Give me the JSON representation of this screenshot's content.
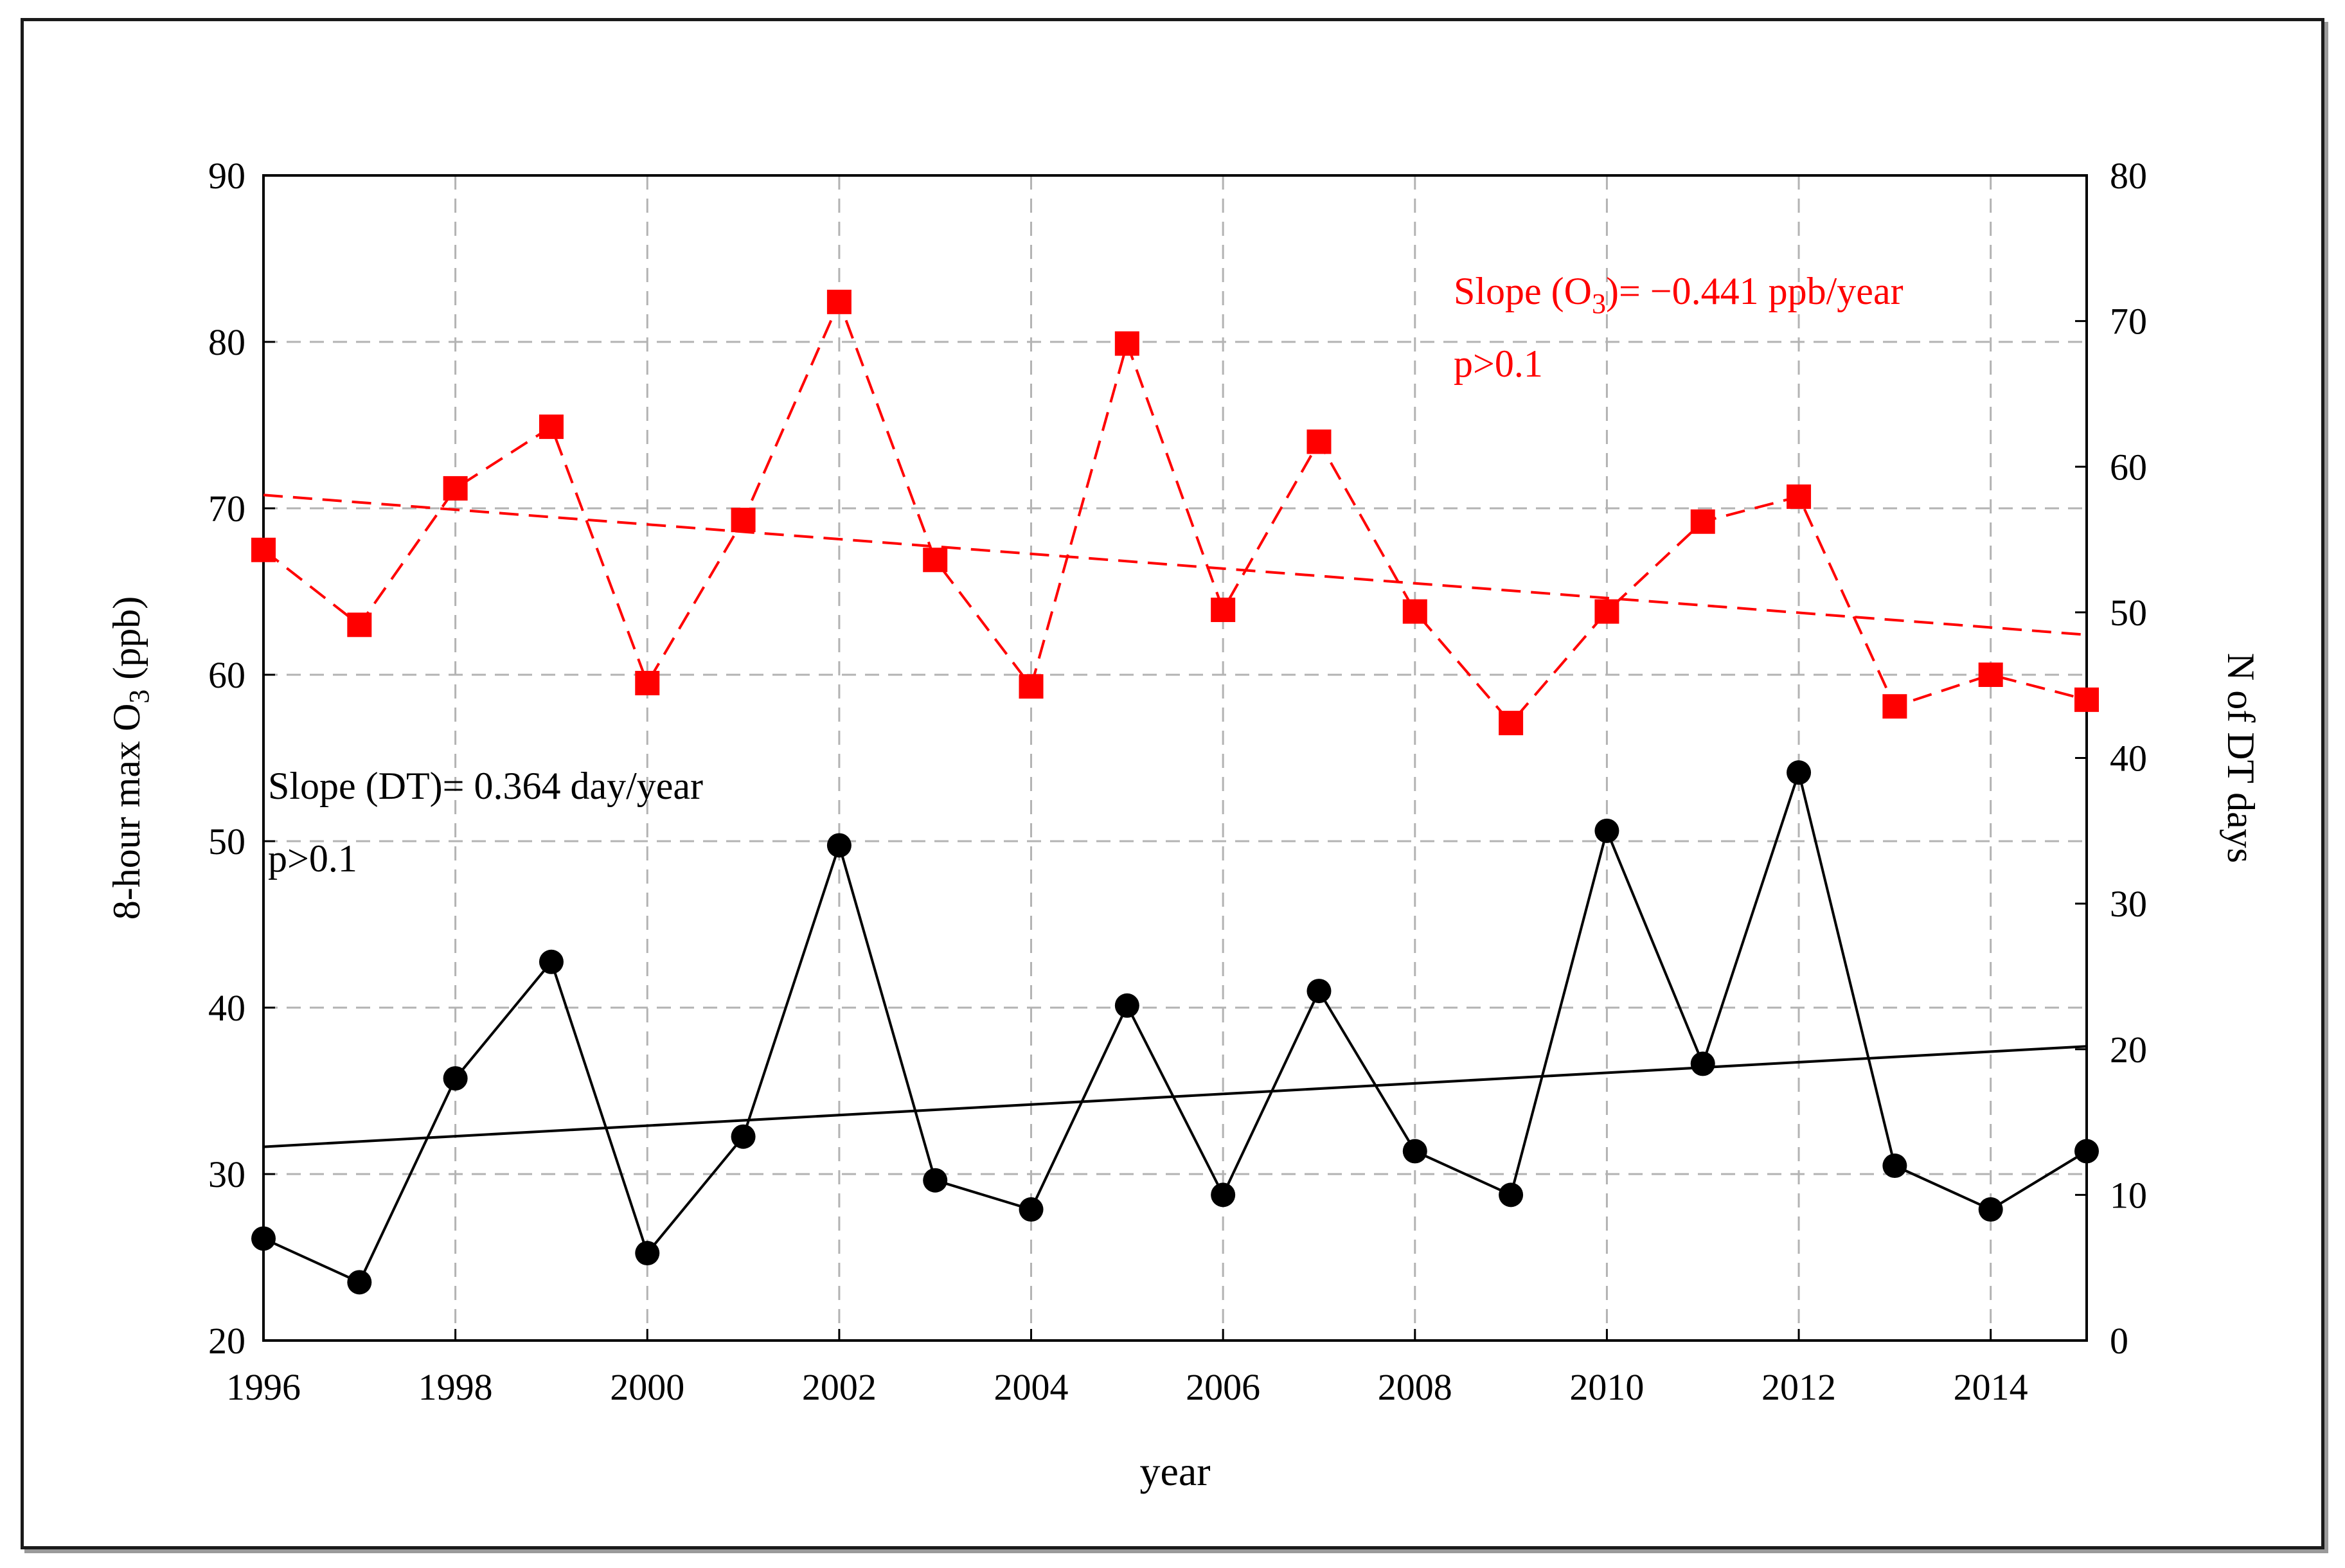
{
  "chart_data": {
    "type": "line",
    "x": [
      1996,
      1997,
      1998,
      1999,
      2000,
      2001,
      2002,
      2003,
      2004,
      2005,
      2006,
      2007,
      2008,
      2009,
      2010,
      2011,
      2012,
      2013,
      2014,
      2015
    ],
    "xlabel": "year",
    "xlim": [
      1996,
      2015
    ],
    "xticks": [
      1996,
      1998,
      2000,
      2002,
      2004,
      2006,
      2008,
      2010,
      2012,
      2014
    ],
    "ylabel_left": "8-hour max O3 (ppb)",
    "ylim_left": [
      20,
      90
    ],
    "yticks_left": [
      20,
      30,
      40,
      50,
      60,
      70,
      80,
      90
    ],
    "ylabel_right": "N of DT days",
    "ylim_right": [
      0,
      80
    ],
    "yticks_right": [
      0,
      10,
      20,
      30,
      40,
      50,
      60,
      70,
      80
    ],
    "grid": true,
    "series": [
      {
        "name": "O3",
        "axis": "left",
        "color": "#ff0000",
        "marker": "square",
        "line": "dashed",
        "values": [
          67.5,
          63.0,
          71.2,
          74.9,
          59.5,
          69.3,
          82.4,
          66.9,
          59.3,
          79.9,
          63.9,
          74.0,
          63.8,
          57.1,
          63.8,
          69.2,
          70.7,
          58.1,
          60.0,
          58.5
        ]
      },
      {
        "name": "DT",
        "axis": "right",
        "color": "#000000",
        "marker": "circle",
        "line": "solid",
        "values": [
          7,
          4,
          18,
          26,
          6,
          14,
          34,
          11,
          9,
          23,
          10,
          24,
          13,
          10,
          35,
          19,
          39,
          12,
          9,
          13
        ]
      }
    ],
    "trendlines": [
      {
        "series": "O3",
        "axis": "left",
        "color": "#ff0000",
        "line": "dashed",
        "start": 70.8,
        "end": 62.4
      },
      {
        "series": "DT",
        "axis": "right",
        "color": "#000000",
        "line": "solid",
        "start": 13.3,
        "end": 20.2
      }
    ],
    "annotations": {
      "o3_slope_prefix": "Slope (O",
      "o3_slope_sub": "3",
      "o3_slope_suffix": ")= −0.441 ppb/year",
      "o3_p": "p>0.1",
      "dt_slope": "Slope (DT)= 0.364 day/year",
      "dt_p": "p>0.1"
    },
    "ylabel_left_parts": {
      "prefix": "8-hour max O",
      "sub": "3",
      "suffix": " (ppb)"
    }
  }
}
